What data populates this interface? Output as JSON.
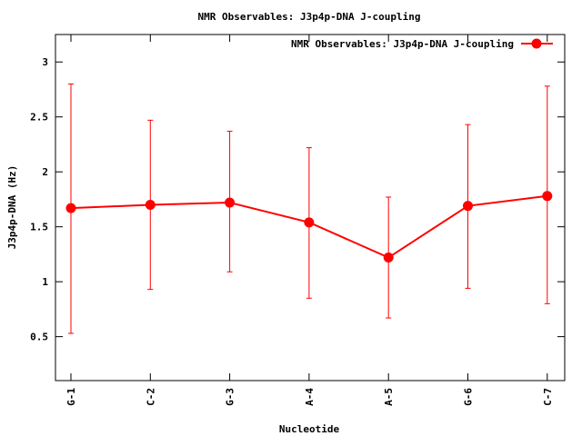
{
  "chart_data": {
    "type": "line",
    "title": "NMR Observables: J3p4p-DNA J-coupling",
    "xlabel": "Nucleotide",
    "ylabel": "J3p4p-DNA (Hz)",
    "categories": [
      "G-1",
      "C-2",
      "G-3",
      "A-4",
      "A-5",
      "G-6",
      "C-7"
    ],
    "series": [
      {
        "name": "NMR Observables: J3p4p-DNA J-coupling",
        "values": [
          1.67,
          1.7,
          1.72,
          1.54,
          1.22,
          1.69,
          1.78
        ],
        "err_low": [
          0.53,
          0.93,
          1.09,
          0.85,
          0.67,
          0.94,
          0.8
        ],
        "err_high": [
          2.8,
          2.47,
          2.37,
          2.22,
          1.77,
          2.43,
          2.78
        ],
        "color": "#ff0000"
      }
    ],
    "ylim": [
      0.1,
      3.25
    ],
    "yticks": [
      0.5,
      1,
      1.5,
      2,
      2.5,
      3
    ],
    "ytick_labels": [
      "0.5",
      "1",
      "1.5",
      "2",
      "2.5",
      "3"
    ],
    "grid": false,
    "legend_position": "top-right"
  }
}
